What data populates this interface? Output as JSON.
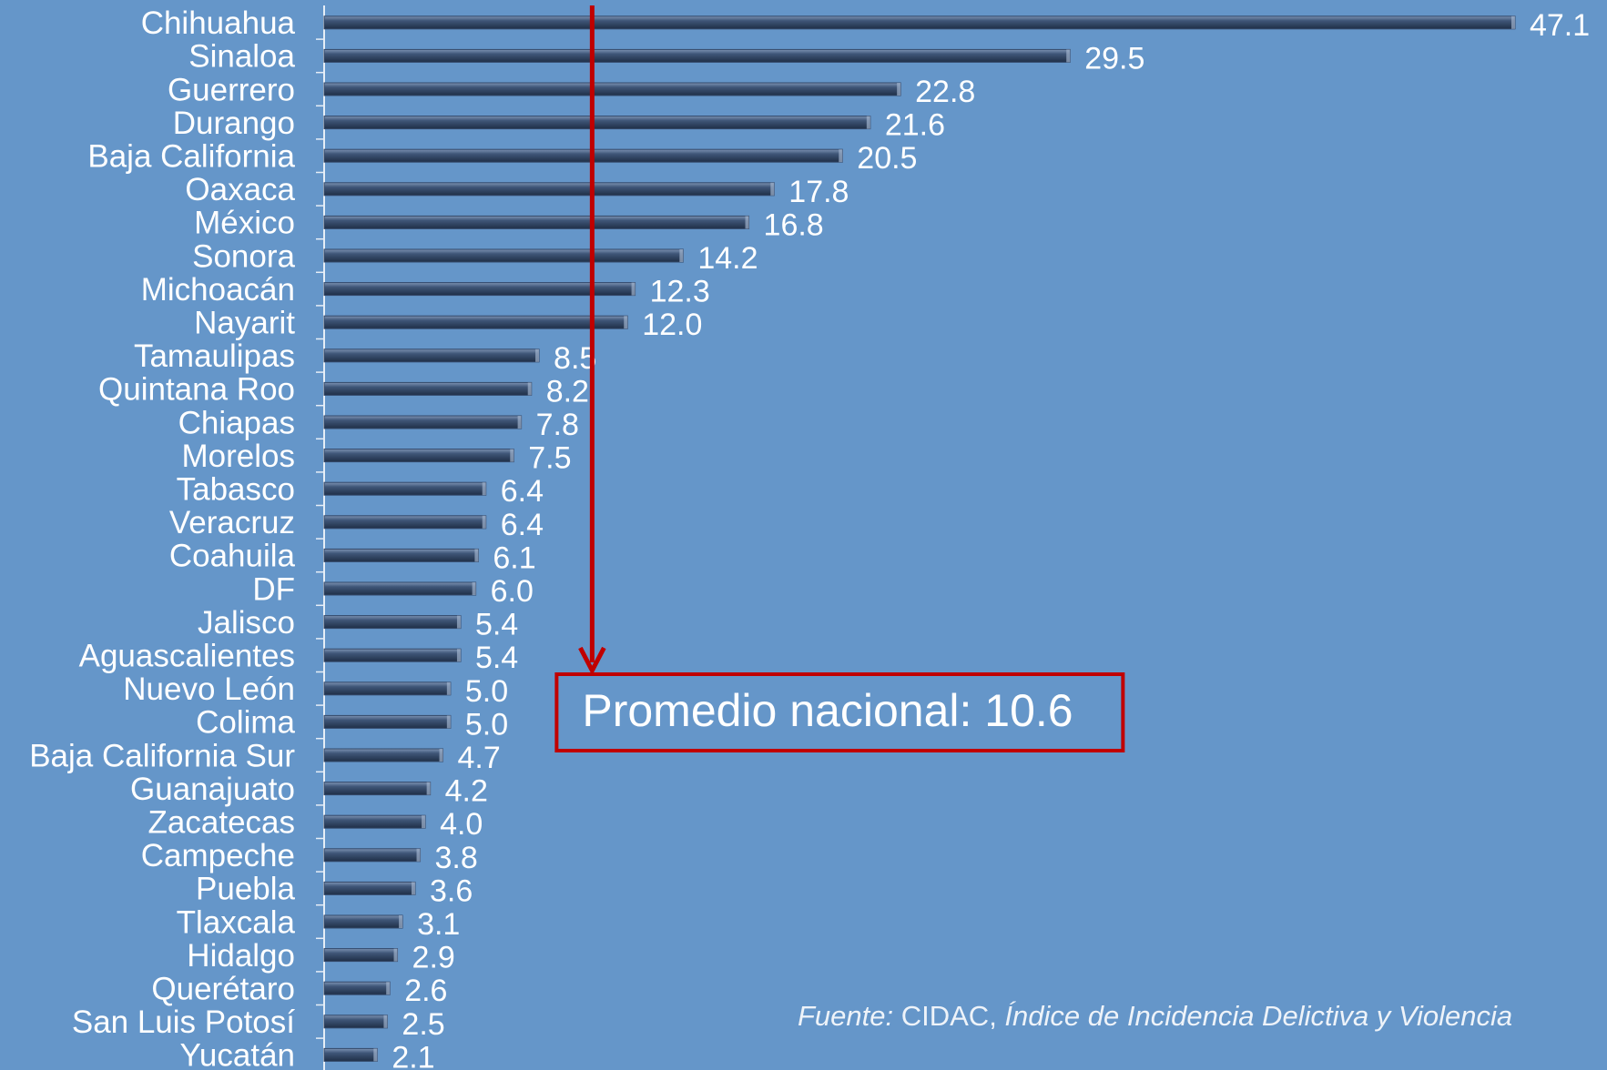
{
  "chart_data": {
    "type": "barh",
    "categories": [
      "Chihuahua",
      "Sinaloa",
      "Guerrero",
      "Durango",
      "Baja California",
      "Oaxaca",
      "México",
      "Sonora",
      "Michoacán",
      "Nayarit",
      "Tamaulipas",
      "Quintana Roo",
      "Chiapas",
      "Morelos",
      "Tabasco",
      "Veracruz",
      "Coahuila",
      "DF",
      "Jalisco",
      "Aguascalientes",
      "Nuevo León",
      "Colima",
      "Baja California Sur",
      "Guanajuato",
      "Zacatecas",
      "Campeche",
      "Puebla",
      "Tlaxcala",
      "Hidalgo",
      "Querétaro",
      "San Luis Potosí",
      "Yucatán"
    ],
    "values": [
      47.1,
      29.5,
      22.8,
      21.6,
      20.5,
      17.8,
      16.8,
      14.2,
      12.3,
      12.0,
      8.5,
      8.2,
      7.8,
      7.5,
      6.4,
      6.4,
      6.1,
      6.0,
      5.4,
      5.4,
      5.0,
      5.0,
      4.7,
      4.2,
      4.0,
      3.8,
      3.6,
      3.1,
      2.9,
      2.6,
      2.5,
      2.1
    ],
    "value_labels": [
      "47.1",
      "29.5",
      "22.8",
      "21.6",
      "20.5",
      "17.8",
      "16.8",
      "14.2",
      "12.3",
      "12.0",
      "8.5",
      "8.2",
      "7.8",
      "7.5",
      "6.4",
      "6.4",
      "6.1",
      "6.0",
      "5.4",
      "5.4",
      "5.0",
      "5.0",
      "4.7",
      "4.2",
      "4.0",
      "3.8",
      "3.6",
      "3.1",
      "2.9",
      "2.6",
      "2.5",
      "2.1"
    ],
    "color": "#34496a",
    "xlim": [
      0,
      50
    ],
    "reference_line": {
      "value": 10.6,
      "label": "Promedio nacional: 10.6",
      "color": "#c00000"
    },
    "source": [
      "Fuente:",
      " CIDAC, ",
      "Índice de Incidencia Delictiva y Violencia"
    ]
  }
}
